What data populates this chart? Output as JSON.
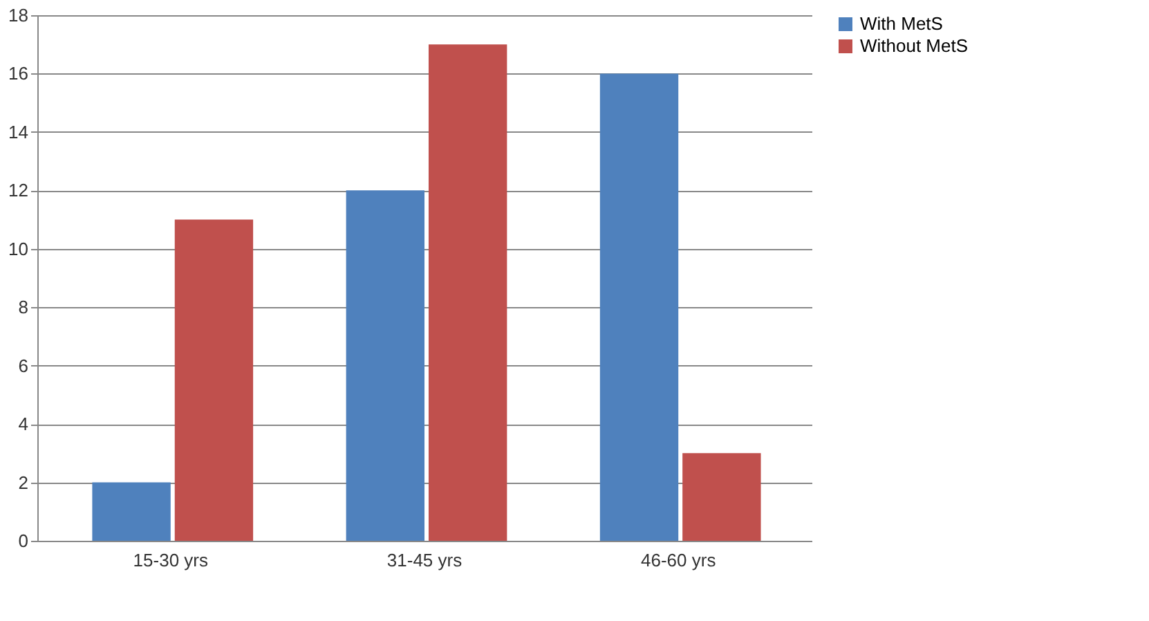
{
  "chart_data": {
    "type": "bar",
    "categories": [
      "15-30 yrs",
      "31-45 yrs",
      "46-60 yrs"
    ],
    "series": [
      {
        "name": "With MetS",
        "color": "#4f81bd",
        "values": [
          2,
          12,
          16
        ]
      },
      {
        "name": "Without MetS",
        "color": "#c0504d",
        "values": [
          11,
          17,
          3
        ]
      }
    ],
    "ylim": [
      0,
      18
    ],
    "yticks": [
      0,
      2,
      4,
      6,
      8,
      10,
      12,
      14,
      16,
      18
    ],
    "grid": "y",
    "legend": "right"
  }
}
